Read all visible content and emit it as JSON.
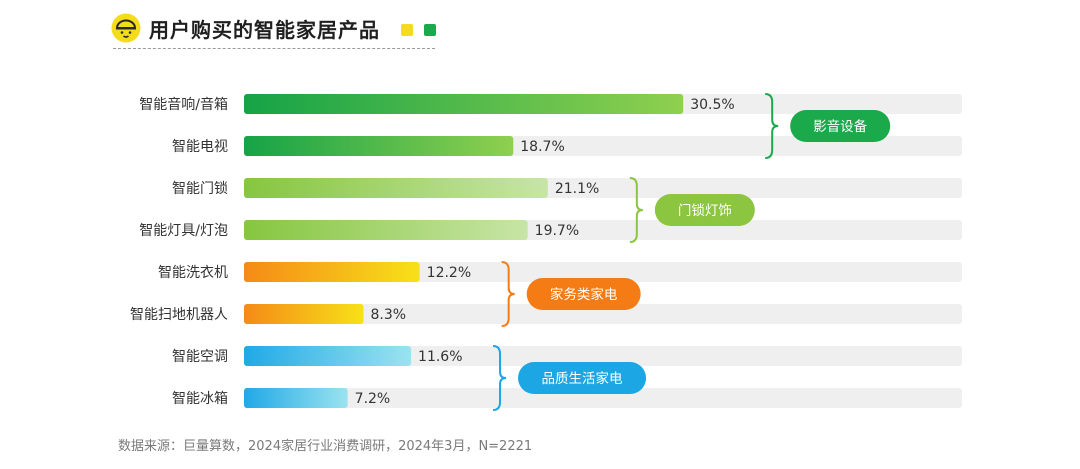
{
  "header": {
    "title": "用户购买的智能家居产品",
    "logo_icon": "bulb-face-icon",
    "legend_squares": [
      "#f4dc1c",
      "#1aa94b"
    ]
  },
  "chart_data": {
    "type": "bar",
    "orientation": "horizontal",
    "title": "用户购买的智能家居产品",
    "categories": [
      "智能音响/音箱",
      "智能电视",
      "智能门锁",
      "智能灯具/灯泡",
      "智能洗衣机",
      "智能扫地机器人",
      "智能空调",
      "智能冰箱"
    ],
    "values": [
      30.5,
      18.7,
      21.1,
      19.7,
      12.2,
      8.3,
      11.6,
      7.2
    ],
    "value_labels": [
      "30.5%",
      "18.7%",
      "21.1%",
      "19.7%",
      "12.2%",
      "8.3%",
      "11.6%",
      "7.2%"
    ],
    "unit": "%",
    "xlim": [
      0,
      40
    ],
    "grid": false,
    "groups": [
      {
        "label": "影音设备",
        "categories": [
          "智能音响/音箱",
          "智能电视"
        ],
        "color": "#1aa94b",
        "gradient": [
          "#15a347",
          "#8fd04f"
        ]
      },
      {
        "label": "门锁灯饰",
        "categories": [
          "智能门锁",
          "智能灯具/灯泡"
        ],
        "color": "#8cc640",
        "gradient": [
          "#86c63f",
          "#c7e5a6"
        ]
      },
      {
        "label": "家务类家电",
        "categories": [
          "智能洗衣机",
          "智能扫地机器人"
        ],
        "color": "#f57c14",
        "gradient": [
          "#f58a17",
          "#f7e118"
        ]
      },
      {
        "label": "品质生活家电",
        "categories": [
          "智能空调",
          "智能冰箱"
        ],
        "color": "#1ca7e4",
        "gradient": [
          "#20a9e6",
          "#9be3ef"
        ]
      }
    ],
    "track_color": "#efefef"
  },
  "footer": {
    "source": "数据来源：巨量算数，2024家居行业消费调研，2024年3月，N=2221"
  }
}
